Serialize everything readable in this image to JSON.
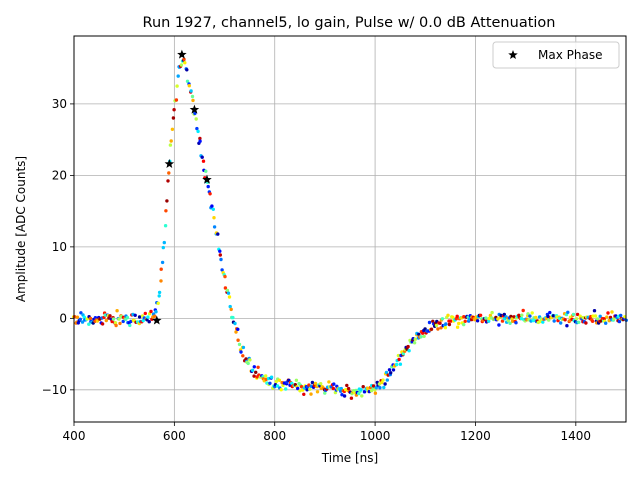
{
  "chart_data": {
    "type": "scatter",
    "title": "Run 1927, channel5, lo gain, Pulse w/ 0.0 dB Attenuation",
    "xlabel": "Time [ns]",
    "ylabel": "Amplitude [ADC Counts]",
    "xlim": [
      400,
      1500
    ],
    "ylim": [
      -14.5,
      39.5
    ],
    "xticks": [
      400,
      600,
      800,
      1000,
      1200,
      1400
    ],
    "yticks": [
      -10,
      0,
      10,
      20,
      30
    ],
    "grid": true,
    "legend_position": "upper right",
    "colormap": "jet",
    "series": [
      {
        "name": "Max Phase",
        "marker": "star",
        "color": "#000000",
        "x": [
          565,
          590,
          615,
          640,
          665
        ],
        "y": [
          -0.3,
          21.6,
          36.9,
          29.2,
          19.4
        ]
      },
      {
        "marker": "dot",
        "x": [
          400,
          440,
          480,
          520,
          560,
          570,
          580,
          590,
          600,
          610,
          620,
          630,
          640,
          650,
          660,
          670,
          680,
          690,
          700,
          710,
          720,
          730,
          740,
          760,
          780,
          800,
          850,
          900,
          950,
          980,
          1000,
          1020,
          1040,
          1060,
          1080,
          1100,
          1120,
          1150,
          1200,
          1250,
          1300,
          1350,
          1400,
          1450,
          1500
        ],
        "y": [
          0.0,
          0.0,
          0.0,
          0.0,
          0.0,
          3.0,
          11.0,
          21.5,
          29.5,
          35.5,
          36.5,
          33.0,
          29.0,
          24.5,
          21.0,
          17.5,
          13.5,
          9.5,
          5.5,
          2.0,
          -1.0,
          -3.5,
          -5.5,
          -7.5,
          -8.5,
          -9.0,
          -9.5,
          -9.8,
          -10.0,
          -10.2,
          -10.0,
          -8.5,
          -6.5,
          -4.5,
          -3.0,
          -1.8,
          -1.0,
          -0.4,
          0.0,
          0.1,
          0.1,
          0.0,
          0.0,
          0.0,
          0.0
        ]
      }
    ]
  }
}
